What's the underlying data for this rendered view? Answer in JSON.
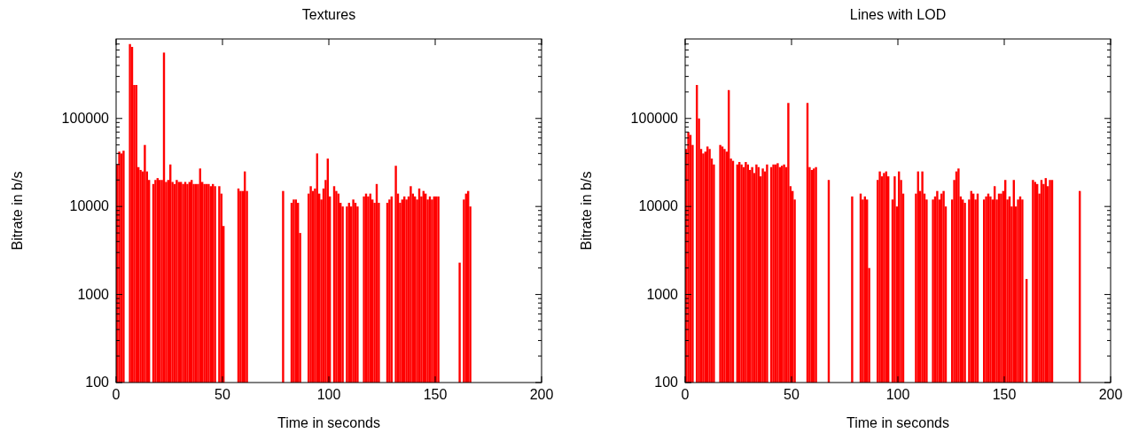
{
  "chart_data": [
    {
      "type": "bar",
      "title": "Textures",
      "xlabel": "Time in seconds",
      "ylabel": "Bitrate in b/s",
      "log": "y",
      "grid": false,
      "xlim": [
        0,
        200
      ],
      "xticks": [
        0,
        50,
        100,
        150,
        200
      ],
      "ylim": [
        100,
        800000
      ],
      "yticks": [
        100,
        1000,
        10000,
        100000
      ],
      "series": [
        {
          "color": "#ff0000",
          "x": [
            0,
            1,
            2,
            3,
            6,
            7,
            8,
            9,
            10,
            11,
            12,
            13,
            14,
            15,
            17,
            18,
            19,
            20,
            21,
            22,
            23,
            24,
            25,
            26,
            27,
            28,
            29,
            30,
            31,
            32,
            33,
            34,
            35,
            36,
            37,
            38,
            39,
            40,
            41,
            42,
            43,
            44,
            45,
            46,
            47,
            48,
            49,
            50,
            56,
            57,
            58,
            59,
            60,
            61,
            78,
            82,
            83,
            84,
            85,
            86,
            90,
            91,
            92,
            93,
            94,
            95,
            96,
            97,
            98,
            99,
            100,
            102,
            103,
            104,
            105,
            106,
            108,
            109,
            110,
            111,
            112,
            113,
            116,
            117,
            118,
            119,
            120,
            121,
            122,
            123,
            127,
            128,
            129,
            131,
            132,
            133,
            134,
            135,
            136,
            137,
            138,
            139,
            140,
            141,
            142,
            143,
            144,
            145,
            146,
            147,
            148,
            149,
            150,
            151,
            161,
            163,
            164,
            165,
            166
          ],
          "values": [
            30000,
            42000,
            40000,
            43000,
            700000,
            650000,
            240000,
            240000,
            28000,
            26000,
            25000,
            50000,
            25000,
            20000,
            18000,
            20000,
            21000,
            20000,
            20000,
            560000,
            19000,
            20000,
            30000,
            19000,
            18000,
            20000,
            19000,
            19000,
            18000,
            19000,
            18000,
            19000,
            20000,
            18000,
            18000,
            18000,
            27000,
            19000,
            18000,
            18000,
            18000,
            17000,
            18000,
            17000,
            null,
            17000,
            14000,
            6000,
            null,
            16000,
            15000,
            15000,
            25000,
            15000,
            15000,
            11000,
            12000,
            12000,
            11000,
            5000,
            14000,
            17000,
            15000,
            16000,
            40000,
            14000,
            12000,
            16000,
            20000,
            35000,
            13000,
            17000,
            15000,
            14000,
            11000,
            10000,
            10000,
            11000,
            10000,
            12000,
            11000,
            10000,
            13000,
            14000,
            13000,
            14000,
            12000,
            11000,
            18000,
            11000,
            11000,
            12000,
            13000,
            29000,
            14000,
            11000,
            12000,
            13000,
            12000,
            13000,
            17000,
            14000,
            13000,
            12000,
            16000,
            13000,
            15000,
            14000,
            12000,
            13000,
            12000,
            13000,
            13000,
            13000,
            2300,
            12000,
            14000,
            15000,
            10000
          ]
        }
      ]
    },
    {
      "type": "bar",
      "title": "Lines with LOD",
      "xlabel": "Time in seconds",
      "ylabel": "Bitrate in b/s",
      "log": "y",
      "grid": false,
      "xlim": [
        0,
        200
      ],
      "xticks": [
        0,
        50,
        100,
        150,
        200
      ],
      "ylim": [
        100,
        800000
      ],
      "yticks": [
        100,
        1000,
        10000,
        100000
      ],
      "series": [
        {
          "color": "#ff0000",
          "x": [
            0,
            1,
            2,
            3,
            5,
            6,
            7,
            8,
            9,
            10,
            11,
            12,
            13,
            16,
            17,
            18,
            19,
            20,
            21,
            22,
            24,
            25,
            26,
            27,
            28,
            29,
            30,
            31,
            32,
            33,
            34,
            35,
            36,
            37,
            38,
            40,
            41,
            42,
            43,
            44,
            45,
            46,
            47,
            48,
            49,
            50,
            51,
            57,
            58,
            59,
            60,
            61,
            67,
            78,
            82,
            83,
            84,
            85,
            86,
            90,
            91,
            92,
            93,
            94,
            95,
            97,
            98,
            99,
            100,
            101,
            102,
            108,
            109,
            110,
            111,
            112,
            113,
            116,
            117,
            118,
            119,
            120,
            121,
            122,
            125,
            126,
            127,
            128,
            129,
            130,
            131,
            133,
            134,
            135,
            136,
            137,
            140,
            141,
            142,
            143,
            144,
            145,
            146,
            147,
            148,
            149,
            150,
            151,
            152,
            153,
            154,
            155,
            156,
            157,
            158,
            160,
            163,
            164,
            165,
            166,
            167,
            168,
            169,
            170,
            171,
            172,
            185
          ],
          "values": [
            45000,
            70000,
            65000,
            50000,
            240000,
            100000,
            45000,
            40000,
            42000,
            48000,
            45000,
            35000,
            30000,
            50000,
            48000,
            45000,
            42000,
            210000,
            35000,
            33000,
            30000,
            32000,
            30000,
            28000,
            32000,
            30000,
            26000,
            28000,
            24000,
            30000,
            28000,
            22000,
            27000,
            25000,
            30000,
            28000,
            30000,
            30000,
            31000,
            28000,
            29000,
            30000,
            28000,
            150000,
            17000,
            15000,
            12000,
            150000,
            28000,
            26000,
            27000,
            28000,
            20000,
            13000,
            14000,
            12000,
            13000,
            12000,
            2000,
            20000,
            25000,
            22000,
            24000,
            25000,
            22000,
            12000,
            22000,
            10000,
            25000,
            20000,
            14000,
            14000,
            25000,
            15000,
            25000,
            14000,
            12000,
            12000,
            13000,
            15000,
            12000,
            14000,
            15000,
            10000,
            12000,
            20000,
            25000,
            27000,
            13000,
            12000,
            11000,
            12000,
            15000,
            14000,
            12000,
            14000,
            12000,
            13000,
            14000,
            13000,
            12000,
            17000,
            12000,
            14000,
            14000,
            15000,
            20000,
            12000,
            13000,
            10000,
            20000,
            10000,
            12000,
            13000,
            12000,
            1500,
            20000,
            19000,
            18000,
            14000,
            20000,
            18000,
            21000,
            17000,
            20000,
            20000,
            15000
          ]
        }
      ]
    }
  ]
}
